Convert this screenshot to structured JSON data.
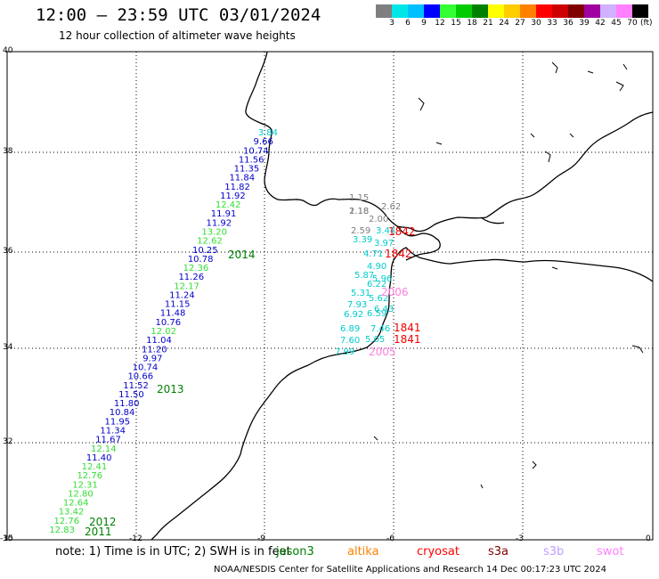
{
  "title": "12:00 – 23:59 UTC 03/01/2024",
  "subtitle": "12 hour collection of altimeter wave heights",
  "color_scale": {
    "unit": "(ft)",
    "colors": [
      "#7f7f7f",
      "#00e6e6",
      "#00bfff",
      "#0000ff",
      "#33ff33",
      "#00cc00",
      "#008000",
      "#ffff00",
      "#ffcc00",
      "#ff8000",
      "#ff0000",
      "#cc0000",
      "#800000",
      "#a000a0",
      "#d0b0ff",
      "#ff80ff",
      "#000000"
    ],
    "labels": [
      "3",
      "6",
      "9",
      "12",
      "15",
      "18",
      "21",
      "24",
      "27",
      "30",
      "33",
      "36",
      "39",
      "42",
      "45",
      "70"
    ]
  },
  "axes": {
    "lat_labels": [
      "40",
      "38",
      "36",
      "34",
      "32",
      "30"
    ],
    "lon_labels": [
      "-15",
      "-12",
      "-9",
      "-6",
      "-3",
      "0"
    ]
  },
  "footer": {
    "note": "note:  1) Time is in UTC;  2) SWH is in feet",
    "credit": "NOAA/NESDIS Center for Satellite Applications and Research     14 Dec 00:17:23 UTC 2024",
    "satellites": [
      {
        "name": "jason3",
        "color": "#008000"
      },
      {
        "name": "altika",
        "color": "#ff8000"
      },
      {
        "name": "cryosat",
        "color": "#ff0000"
      },
      {
        "name": "s3a",
        "color": "#800000"
      },
      {
        "name": "s3b",
        "color": "#c0a0ff"
      },
      {
        "name": "swot",
        "color": "#ff80ff"
      }
    ]
  },
  "track_west": {
    "values": [
      {
        "t": "3.84",
        "c": "#00cccc"
      },
      {
        "t": "9.66",
        "c": "#0000cc"
      },
      {
        "t": "10.74",
        "c": "#0000cc"
      },
      {
        "t": "11.56",
        "c": "#0000cc"
      },
      {
        "t": "11.35",
        "c": "#0000cc"
      },
      {
        "t": "11.84",
        "c": "#0000cc"
      },
      {
        "t": "11.82",
        "c": "#0000cc"
      },
      {
        "t": "11.92",
        "c": "#0000cc"
      },
      {
        "t": "12.42",
        "c": "#33dd33"
      },
      {
        "t": "11.91",
        "c": "#0000cc"
      },
      {
        "t": "11.92",
        "c": "#0000cc"
      },
      {
        "t": "13.20",
        "c": "#33dd33"
      },
      {
        "t": "12.62",
        "c": "#33dd33"
      },
      {
        "t": "10.25",
        "c": "#0000cc"
      },
      {
        "t": "10.78",
        "c": "#0000cc"
      },
      {
        "t": "12.36",
        "c": "#33dd33"
      },
      {
        "t": "11.26",
        "c": "#0000cc"
      },
      {
        "t": "12.17",
        "c": "#33dd33"
      },
      {
        "t": "11.24",
        "c": "#0000cc"
      },
      {
        "t": "11.15",
        "c": "#0000cc"
      },
      {
        "t": "11.48",
        "c": "#0000cc"
      },
      {
        "t": "10.76",
        "c": "#0000cc"
      },
      {
        "t": "12.02",
        "c": "#33dd33"
      },
      {
        "t": "11.04",
        "c": "#0000cc"
      },
      {
        "t": "11.20",
        "c": "#0000cc"
      },
      {
        "t": "9.97",
        "c": "#0000cc"
      },
      {
        "t": "10.74",
        "c": "#0000cc"
      },
      {
        "t": "10.66",
        "c": "#0000cc"
      },
      {
        "t": "11.52",
        "c": "#0000cc"
      },
      {
        "t": "11.50",
        "c": "#0000cc"
      },
      {
        "t": "11.80",
        "c": "#0000cc"
      },
      {
        "t": "10.84",
        "c": "#0000cc"
      },
      {
        "t": "11.95",
        "c": "#0000cc"
      },
      {
        "t": "11.34",
        "c": "#0000cc"
      },
      {
        "t": "11.67",
        "c": "#0000cc"
      },
      {
        "t": "12.14",
        "c": "#33dd33"
      },
      {
        "t": "11.40",
        "c": "#0000cc"
      },
      {
        "t": "12.41",
        "c": "#33dd33"
      },
      {
        "t": "12.76",
        "c": "#33dd33"
      },
      {
        "t": "12.31",
        "c": "#33dd33"
      },
      {
        "t": "12.80",
        "c": "#33dd33"
      },
      {
        "t": "12.64",
        "c": "#33dd33"
      },
      {
        "t": "13.42",
        "c": "#33dd33"
      },
      {
        "t": "12.76",
        "c": "#33dd33"
      },
      {
        "t": "12.83",
        "c": "#33dd33"
      }
    ],
    "time_labels": [
      "2014",
      "2013",
      "2012",
      "2011"
    ],
    "time_color": "#008000"
  },
  "track_east": {
    "values": [
      {
        "t": "1.15",
        "c": "#808080"
      },
      {
        "t": "1.18",
        "c": "#808080"
      },
      {
        "t": "2.62",
        "c": "#808080"
      },
      {
        "t": "2.18",
        "c": "#808080"
      },
      {
        "t": "2.00",
        "c": "#808080"
      },
      {
        "t": "2.59",
        "c": "#808080"
      },
      {
        "t": "3.44",
        "c": "#00cccc"
      },
      {
        "t": "3.39",
        "c": "#00cccc"
      },
      {
        "t": "3.97",
        "c": "#00cccc"
      },
      {
        "t": "4.71",
        "c": "#00cccc"
      },
      {
        "t": "4.90",
        "c": "#00cccc"
      },
      {
        "t": "5.87",
        "c": "#00cccc"
      },
      {
        "t": "5.96",
        "c": "#00cccc"
      },
      {
        "t": "6.22",
        "c": "#00cccc"
      },
      {
        "t": "5.31",
        "c": "#00cccc"
      },
      {
        "t": "5.62",
        "c": "#00cccc"
      },
      {
        "t": "7.93",
        "c": "#00cccc"
      },
      {
        "t": "6.43",
        "c": "#00cccc"
      },
      {
        "t": "6.92",
        "c": "#00cccc"
      },
      {
        "t": "6.59",
        "c": "#00cccc"
      },
      {
        "t": "6.89",
        "c": "#00cccc"
      },
      {
        "t": "7.46",
        "c": "#00cccc"
      },
      {
        "t": "7.60",
        "c": "#00cccc"
      },
      {
        "t": "5.05",
        "c": "#00cccc"
      },
      {
        "t": "7.99",
        "c": "#00cccc"
      }
    ],
    "time_labels": [
      {
        "t": "1842",
        "c": "#ee0000"
      },
      {
        "t": "1842",
        "c": "#ee0000"
      },
      {
        "t": "2006",
        "c": "#ff80dd"
      },
      {
        "t": "1841",
        "c": "#ee0000"
      },
      {
        "t": "1841",
        "c": "#ee0000"
      },
      {
        "t": "2005",
        "c": "#ff80dd"
      }
    ]
  }
}
